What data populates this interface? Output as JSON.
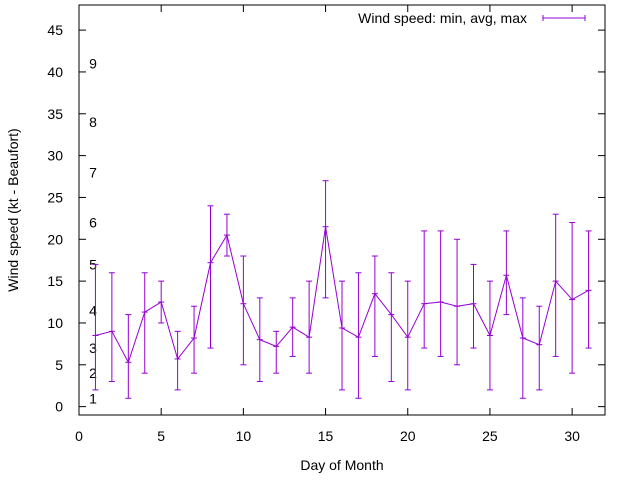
{
  "chart_data": {
    "type": "line",
    "title": "",
    "xlabel": "Day of Month",
    "ylabel": "Wind speed (kt - Beaufort)",
    "xlim": [
      0,
      32
    ],
    "ylim": [
      -1,
      48
    ],
    "x_ticks": [
      0,
      5,
      10,
      15,
      20,
      25,
      30
    ],
    "y_ticks": [
      0,
      5,
      10,
      15,
      20,
      25,
      30,
      35,
      40,
      45
    ],
    "grid": false,
    "legend_position": "top-right",
    "series_color": "#9400d3",
    "series": [
      {
        "name": "Wind speed: min, avg, max",
        "x": [
          1,
          2,
          3,
          4,
          5,
          6,
          7,
          8,
          9,
          10,
          11,
          12,
          13,
          14,
          15,
          16,
          17,
          18,
          19,
          20,
          21,
          22,
          23,
          24,
          25,
          26,
          27,
          28,
          29,
          30,
          31
        ],
        "avg": [
          8.5,
          9,
          5.3,
          11.3,
          12.5,
          5.7,
          8.2,
          17.2,
          20.5,
          12.3,
          8,
          7.2,
          9.5,
          8.3,
          21.5,
          9.4,
          8.3,
          13.5,
          11,
          8.3,
          12.3,
          12.5,
          12,
          12.3,
          8.5,
          15.7,
          8.2,
          7.4,
          15,
          12.8,
          13.9
        ],
        "min": [
          2,
          3,
          1,
          4,
          10,
          2,
          4,
          7,
          18,
          5,
          3,
          4,
          6,
          4,
          13,
          2,
          1,
          6,
          3,
          2,
          7,
          6,
          5,
          7,
          2,
          11,
          1,
          2,
          6,
          4,
          7
        ],
        "max": [
          17,
          16,
          11,
          16,
          15,
          9,
          12,
          24,
          23,
          18,
          13,
          9,
          13,
          15,
          27,
          15,
          16,
          18,
          16,
          15,
          21,
          21,
          20,
          17,
          15,
          21,
          13,
          12,
          23,
          22,
          21
        ]
      }
    ],
    "beaufort_labels": [
      {
        "label": "1",
        "y": 1
      },
      {
        "label": "2",
        "y": 4
      },
      {
        "label": "3",
        "y": 7
      },
      {
        "label": "4",
        "y": 11.5
      },
      {
        "label": "5",
        "y": 17
      },
      {
        "label": "6",
        "y": 22
      },
      {
        "label": "7",
        "y": 28
      },
      {
        "label": "8",
        "y": 34
      },
      {
        "label": "9",
        "y": 41
      }
    ]
  }
}
